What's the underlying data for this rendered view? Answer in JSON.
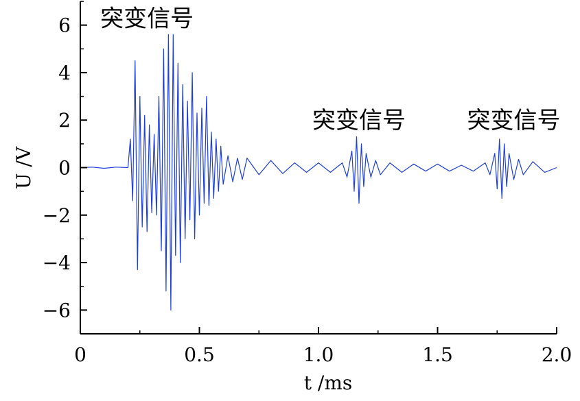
{
  "chart_data": {
    "type": "line",
    "title": "",
    "xlabel": "t /ms",
    "ylabel": "U /V",
    "xlim": [
      0,
      2.0
    ],
    "ylim": [
      -7,
      7
    ],
    "x_ticks": [
      0,
      0.5,
      1.0,
      1.5,
      2.0
    ],
    "x_tick_labels": [
      "0",
      "0.5",
      "1.0",
      "1.5",
      "2.0"
    ],
    "y_ticks": [
      -6,
      -4,
      -2,
      0,
      2,
      4,
      6
    ],
    "y_tick_labels": [
      "−6",
      "−4",
      "−2",
      "0",
      "2",
      "4",
      "6"
    ],
    "grid": false,
    "line_color": "#1f3fd8",
    "annotations": [
      {
        "text": "突变信号",
        "x": 0.28,
        "y": 6.3
      },
      {
        "text": "突变信号",
        "x": 1.17,
        "y": 2.0
      },
      {
        "text": "突变信号",
        "x": 1.82,
        "y": 2.0
      }
    ],
    "series": [
      {
        "x": [
          0.0,
          0.05,
          0.1,
          0.15,
          0.2,
          0.21,
          0.22,
          0.23,
          0.24,
          0.25,
          0.26,
          0.27,
          0.28,
          0.29,
          0.3,
          0.31,
          0.32,
          0.33,
          0.34,
          0.35,
          0.36,
          0.37,
          0.38,
          0.39,
          0.4,
          0.41,
          0.42,
          0.43,
          0.44,
          0.45,
          0.46,
          0.47,
          0.48,
          0.49,
          0.5,
          0.51,
          0.52,
          0.53,
          0.54,
          0.55,
          0.56,
          0.57,
          0.58,
          0.59,
          0.6,
          0.62,
          0.64,
          0.66,
          0.68,
          0.7,
          0.75,
          0.8,
          0.85,
          0.9,
          0.95,
          1.0,
          1.05,
          1.1,
          1.12,
          1.14,
          1.15,
          1.16,
          1.17,
          1.18,
          1.19,
          1.2,
          1.22,
          1.24,
          1.26,
          1.3,
          1.35,
          1.4,
          1.45,
          1.5,
          1.55,
          1.6,
          1.65,
          1.7,
          1.72,
          1.74,
          1.75,
          1.76,
          1.77,
          1.78,
          1.79,
          1.8,
          1.82,
          1.84,
          1.86,
          1.9,
          1.95,
          2.0
        ],
        "y": [
          0.0,
          0.02,
          -0.03,
          0.02,
          0.0,
          1.2,
          -1.4,
          4.5,
          -4.3,
          3.0,
          -2.5,
          2.2,
          -2.7,
          1.8,
          -1.9,
          1.4,
          -2.0,
          3.0,
          -3.5,
          5.0,
          -5.2,
          5.6,
          -6.0,
          5.6,
          -3.7,
          4.4,
          -4.0,
          3.5,
          -3.0,
          2.8,
          -2.2,
          4.0,
          -3.0,
          2.3,
          -2.0,
          2.5,
          -1.5,
          3.0,
          -1.6,
          1.5,
          -1.3,
          1.2,
          -1.0,
          0.9,
          -0.7,
          0.5,
          -0.6,
          0.4,
          -0.5,
          0.4,
          -0.3,
          0.3,
          -0.25,
          0.2,
          -0.2,
          0.2,
          -0.2,
          0.2,
          -0.4,
          0.7,
          -1.0,
          1.3,
          -1.5,
          1.0,
          -0.8,
          0.6,
          -0.4,
          0.3,
          -0.3,
          0.2,
          -0.2,
          0.15,
          -0.15,
          0.15,
          -0.15,
          0.1,
          -0.15,
          0.2,
          -0.3,
          0.6,
          -0.9,
          1.2,
          -1.3,
          1.0,
          -0.8,
          0.6,
          -0.5,
          0.35,
          -0.3,
          0.25,
          -0.2,
          0.0
        ]
      }
    ]
  }
}
